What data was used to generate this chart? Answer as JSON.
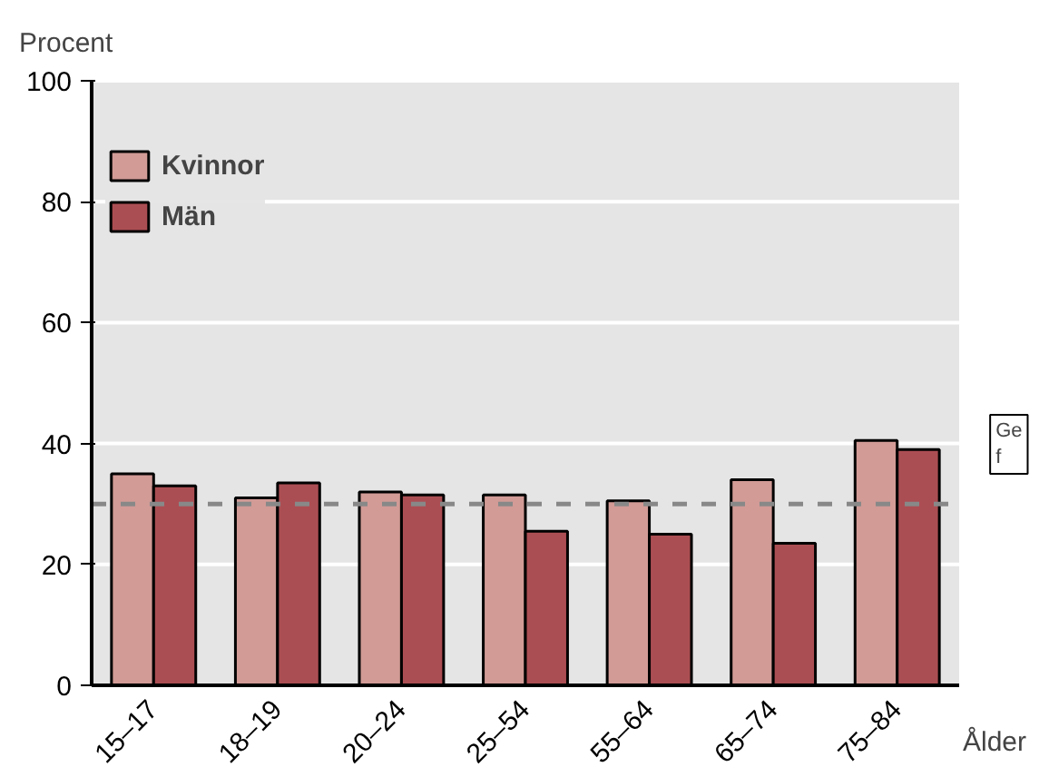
{
  "chart_data": {
    "type": "bar",
    "ylabel": "Procent",
    "xlabel": "Ålder",
    "categories": [
      "15–17",
      "18–19",
      "20–24",
      "25–54",
      "55–64",
      "65–74",
      "75–84"
    ],
    "series": [
      {
        "name": "Kvinnor",
        "color": "#d29b96",
        "values": [
          35,
          31,
          32,
          31.5,
          30.5,
          34,
          40.5
        ]
      },
      {
        "name": "Män",
        "color": "#ab4e53",
        "values": [
          33,
          33.5,
          31.5,
          25.5,
          25,
          23.5,
          39
        ]
      }
    ],
    "ylim": [
      0,
      100
    ],
    "yticks": [
      0,
      20,
      40,
      60,
      80,
      100
    ],
    "grid": "y",
    "legend": "top left",
    "ref_lines": [
      {
        "axis": "y",
        "value": 30,
        "label": "Ge\nf",
        "color": "#888888",
        "line_style": "dashed"
      }
    ]
  }
}
